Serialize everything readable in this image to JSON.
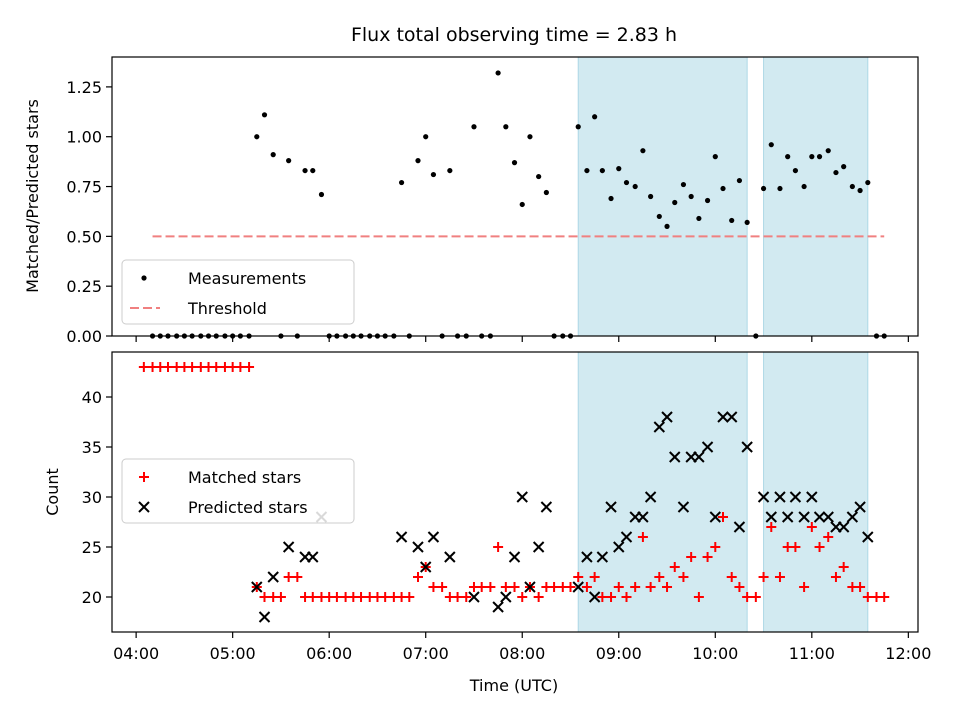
{
  "chart_data": [
    {
      "type": "scatter",
      "panel": "top",
      "title": "Flux total observing time = 2.83 h",
      "xlabel": "",
      "ylabel": "Matched/Predicted stars",
      "ylim": [
        0,
        1.4
      ],
      "yticks": [
        0.0,
        0.25,
        0.5,
        0.75,
        1.0,
        1.25
      ],
      "ytick_labels": [
        "0.00",
        "0.25",
        "0.50",
        "0.75",
        "1.00",
        "1.25"
      ],
      "legend_position": "lower-left",
      "legend": [
        "Measurements",
        "Threshold"
      ],
      "series": [
        {
          "name": "Measurements",
          "marker": "dot",
          "color": "#000000",
          "points": [
            [
              4.17,
              0
            ],
            [
              4.25,
              0
            ],
            [
              4.33,
              0
            ],
            [
              4.42,
              0
            ],
            [
              4.5,
              0
            ],
            [
              4.58,
              0
            ],
            [
              4.67,
              0
            ],
            [
              4.75,
              0
            ],
            [
              4.83,
              0
            ],
            [
              4.92,
              0
            ],
            [
              5.0,
              0
            ],
            [
              5.08,
              0
            ],
            [
              5.17,
              0
            ],
            [
              5.25,
              1.0
            ],
            [
              5.33,
              1.11
            ],
            [
              5.42,
              0.91
            ],
            [
              5.5,
              0
            ],
            [
              5.58,
              0.88
            ],
            [
              5.67,
              0
            ],
            [
              5.75,
              0.83
            ],
            [
              5.83,
              0.83
            ],
            [
              5.92,
              0.71
            ],
            [
              6.0,
              0
            ],
            [
              6.08,
              0
            ],
            [
              6.17,
              0
            ],
            [
              6.25,
              0
            ],
            [
              6.33,
              0
            ],
            [
              6.42,
              0
            ],
            [
              6.5,
              0
            ],
            [
              6.58,
              0
            ],
            [
              6.67,
              0
            ],
            [
              6.75,
              0.77
            ],
            [
              6.83,
              0
            ],
            [
              6.92,
              0.88
            ],
            [
              7.0,
              1.0
            ],
            [
              7.08,
              0.81
            ],
            [
              7.17,
              0
            ],
            [
              7.25,
              0.83
            ],
            [
              7.33,
              0
            ],
            [
              7.42,
              0
            ],
            [
              7.5,
              1.05
            ],
            [
              7.58,
              0
            ],
            [
              7.67,
              0
            ],
            [
              7.75,
              1.32
            ],
            [
              7.83,
              1.05
            ],
            [
              7.92,
              0.87
            ],
            [
              8.0,
              0.66
            ],
            [
              8.08,
              1.0
            ],
            [
              8.17,
              0.8
            ],
            [
              8.25,
              0.72
            ],
            [
              8.33,
              0
            ],
            [
              8.42,
              0
            ],
            [
              8.5,
              0
            ],
            [
              8.58,
              1.05
            ],
            [
              8.67,
              0.83
            ],
            [
              8.75,
              1.1
            ],
            [
              8.83,
              0.83
            ],
            [
              8.92,
              0.69
            ],
            [
              9.0,
              0.84
            ],
            [
              9.08,
              0.77
            ],
            [
              9.17,
              0.75
            ],
            [
              9.25,
              0.93
            ],
            [
              9.33,
              0.7
            ],
            [
              9.42,
              0.6
            ],
            [
              9.5,
              0.55
            ],
            [
              9.58,
              0.67
            ],
            [
              9.67,
              0.76
            ],
            [
              9.75,
              0.7
            ],
            [
              9.83,
              0.59
            ],
            [
              9.92,
              0.68
            ],
            [
              10.0,
              0.9
            ],
            [
              10.08,
              0.74
            ],
            [
              10.17,
              0.58
            ],
            [
              10.25,
              0.78
            ],
            [
              10.33,
              0.57
            ],
            [
              10.42,
              0
            ],
            [
              10.5,
              0.74
            ],
            [
              10.58,
              0.96
            ],
            [
              10.67,
              0.74
            ],
            [
              10.75,
              0.9
            ],
            [
              10.83,
              0.83
            ],
            [
              10.92,
              0.75
            ],
            [
              11.0,
              0.9
            ],
            [
              11.08,
              0.9
            ],
            [
              11.17,
              0.93
            ],
            [
              11.25,
              0.82
            ],
            [
              11.33,
              0.85
            ],
            [
              11.42,
              0.75
            ],
            [
              11.5,
              0.73
            ],
            [
              11.58,
              0.77
            ],
            [
              11.67,
              0
            ],
            [
              11.75,
              0
            ]
          ]
        },
        {
          "name": "Threshold",
          "style": "dashed",
          "color": "#f08080",
          "points": [
            [
              4.17,
              0.5
            ],
            [
              11.75,
              0.5
            ]
          ]
        }
      ]
    },
    {
      "type": "scatter",
      "panel": "bottom",
      "xlabel": "Time (UTC)",
      "ylabel": "Count",
      "xlim": [
        3.75,
        12.1
      ],
      "xticks": [
        4,
        5,
        6,
        7,
        8,
        9,
        10,
        11,
        12
      ],
      "xtick_labels": [
        "04:00",
        "05:00",
        "06:00",
        "07:00",
        "08:00",
        "09:00",
        "10:00",
        "11:00",
        "12:00"
      ],
      "ylim": [
        16.5,
        44.5
      ],
      "yticks": [
        20,
        25,
        30,
        35,
        40
      ],
      "ytick_labels": [
        "20",
        "25",
        "30",
        "35",
        "40"
      ],
      "legend_position": "center-left",
      "legend": [
        "Matched stars",
        "Predicted stars"
      ],
      "series": [
        {
          "name": "Matched stars",
          "marker": "plus",
          "color": "#ff0000",
          "points": [
            [
              4.08,
              43
            ],
            [
              4.17,
              43
            ],
            [
              4.25,
              43
            ],
            [
              4.33,
              43
            ],
            [
              4.42,
              43
            ],
            [
              4.5,
              43
            ],
            [
              4.58,
              43
            ],
            [
              4.67,
              43
            ],
            [
              4.75,
              43
            ],
            [
              4.83,
              43
            ],
            [
              4.92,
              43
            ],
            [
              5.0,
              43
            ],
            [
              5.08,
              43
            ],
            [
              5.17,
              43
            ],
            [
              5.25,
              21
            ],
            [
              5.33,
              20
            ],
            [
              5.42,
              20
            ],
            [
              5.5,
              20
            ],
            [
              5.58,
              22
            ],
            [
              5.67,
              22
            ],
            [
              5.75,
              20
            ],
            [
              5.83,
              20
            ],
            [
              5.92,
              20
            ],
            [
              6.0,
              20
            ],
            [
              6.08,
              20
            ],
            [
              6.17,
              20
            ],
            [
              6.25,
              20
            ],
            [
              6.33,
              20
            ],
            [
              6.42,
              20
            ],
            [
              6.5,
              20
            ],
            [
              6.58,
              20
            ],
            [
              6.67,
              20
            ],
            [
              6.75,
              20
            ],
            [
              6.83,
              20
            ],
            [
              6.92,
              22
            ],
            [
              7.0,
              23
            ],
            [
              7.08,
              21
            ],
            [
              7.17,
              21
            ],
            [
              7.25,
              20
            ],
            [
              7.33,
              20
            ],
            [
              7.42,
              20
            ],
            [
              7.5,
              21
            ],
            [
              7.58,
              21
            ],
            [
              7.67,
              21
            ],
            [
              7.75,
              25
            ],
            [
              7.83,
              21
            ],
            [
              7.92,
              21
            ],
            [
              8.0,
              20
            ],
            [
              8.08,
              21
            ],
            [
              8.17,
              20
            ],
            [
              8.25,
              21
            ],
            [
              8.33,
              21
            ],
            [
              8.42,
              21
            ],
            [
              8.5,
              21
            ],
            [
              8.58,
              22
            ],
            [
              8.67,
              21
            ],
            [
              8.75,
              22
            ],
            [
              8.83,
              20
            ],
            [
              8.92,
              20
            ],
            [
              9.0,
              21
            ],
            [
              9.08,
              20
            ],
            [
              9.17,
              21
            ],
            [
              9.25,
              26
            ],
            [
              9.33,
              21
            ],
            [
              9.42,
              22
            ],
            [
              9.5,
              21
            ],
            [
              9.58,
              23
            ],
            [
              9.67,
              22
            ],
            [
              9.75,
              24
            ],
            [
              9.83,
              20
            ],
            [
              9.92,
              24
            ],
            [
              10.0,
              25
            ],
            [
              10.08,
              28
            ],
            [
              10.17,
              22
            ],
            [
              10.25,
              21
            ],
            [
              10.33,
              20
            ],
            [
              10.42,
              20
            ],
            [
              10.5,
              22
            ],
            [
              10.58,
              27
            ],
            [
              10.67,
              22
            ],
            [
              10.75,
              25
            ],
            [
              10.83,
              25
            ],
            [
              10.92,
              21
            ],
            [
              11.0,
              27
            ],
            [
              11.08,
              25
            ],
            [
              11.17,
              26
            ],
            [
              11.25,
              22
            ],
            [
              11.33,
              23
            ],
            [
              11.42,
              21
            ],
            [
              11.5,
              21
            ],
            [
              11.58,
              20
            ],
            [
              11.67,
              20
            ],
            [
              11.75,
              20
            ]
          ]
        },
        {
          "name": "Predicted stars",
          "marker": "x",
          "color": "#000000",
          "points": [
            [
              5.25,
              21
            ],
            [
              5.33,
              18
            ],
            [
              5.42,
              22
            ],
            [
              5.58,
              25
            ],
            [
              5.75,
              24
            ],
            [
              5.83,
              24
            ],
            [
              5.92,
              28
            ],
            [
              6.75,
              26
            ],
            [
              6.92,
              25
            ],
            [
              7.0,
              23
            ],
            [
              7.08,
              26
            ],
            [
              7.25,
              24
            ],
            [
              7.5,
              20
            ],
            [
              7.75,
              19
            ],
            [
              7.83,
              20
            ],
            [
              7.92,
              24
            ],
            [
              8.0,
              30
            ],
            [
              8.08,
              21
            ],
            [
              8.17,
              25
            ],
            [
              8.25,
              29
            ],
            [
              8.58,
              21
            ],
            [
              8.67,
              24
            ],
            [
              8.75,
              20
            ],
            [
              8.83,
              24
            ],
            [
              8.92,
              29
            ],
            [
              9.0,
              25
            ],
            [
              9.08,
              26
            ],
            [
              9.17,
              28
            ],
            [
              9.25,
              28
            ],
            [
              9.33,
              30
            ],
            [
              9.42,
              37
            ],
            [
              9.5,
              38
            ],
            [
              9.58,
              34
            ],
            [
              9.67,
              29
            ],
            [
              9.75,
              34
            ],
            [
              9.83,
              34
            ],
            [
              9.92,
              35
            ],
            [
              10.0,
              28
            ],
            [
              10.08,
              38
            ],
            [
              10.17,
              38
            ],
            [
              10.25,
              27
            ],
            [
              10.33,
              35
            ],
            [
              10.5,
              30
            ],
            [
              10.58,
              28
            ],
            [
              10.67,
              30
            ],
            [
              10.75,
              28
            ],
            [
              10.83,
              30
            ],
            [
              10.92,
              28
            ],
            [
              11.0,
              30
            ],
            [
              11.08,
              28
            ],
            [
              11.17,
              28
            ],
            [
              11.25,
              27
            ],
            [
              11.33,
              27
            ],
            [
              11.42,
              28
            ],
            [
              11.5,
              29
            ],
            [
              11.58,
              26
            ]
          ]
        }
      ],
      "shaded_regions": [
        [
          8.58,
          10.33
        ],
        [
          10.5,
          11.58
        ]
      ],
      "shade_color": "#add8e6"
    }
  ]
}
